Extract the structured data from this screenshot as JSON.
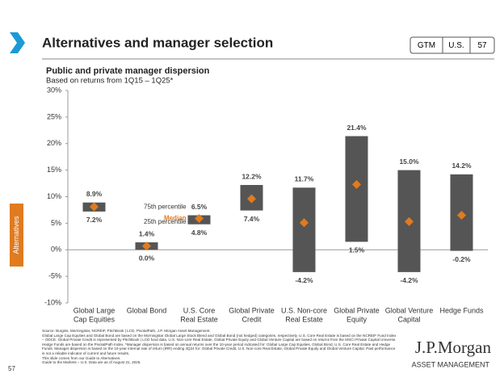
{
  "header": {
    "title": "Alternatives and manager selection",
    "tags": [
      "GTM",
      "U.S.",
      "57"
    ]
  },
  "side_tab": "Alternatives",
  "page_number": "57",
  "chart_data": {
    "type": "floating-bar",
    "title": "Public and private manager dispersion",
    "subtitle": "Based on returns from 1Q15 – 1Q25*",
    "categories": [
      [
        "Global Large",
        "Cap Equities"
      ],
      [
        "Global Bond"
      ],
      [
        "U.S. Core",
        "Real Estate"
      ],
      [
        "Global Private",
        "Credit"
      ],
      [
        "U.S. Non-core",
        "Real Estate"
      ],
      [
        "Global Private",
        "Equity"
      ],
      [
        "Global Venture",
        "Capital"
      ],
      [
        "Hedge Funds"
      ]
    ],
    "series": [
      {
        "name": "75th percentile",
        "color": "#555555",
        "values": [
          8.9,
          1.4,
          6.5,
          12.2,
          11.7,
          21.4,
          15.0,
          14.2
        ],
        "value_labels": [
          "8.9%",
          "1.4%",
          "6.5%",
          "12.2%",
          "11.7%",
          "21.4%",
          "15.0%",
          "14.2%"
        ]
      },
      {
        "name": "Median",
        "color": "#e07b1f",
        "values": [
          8.1,
          0.7,
          5.9,
          9.6,
          5.1,
          12.3,
          5.3,
          6.5
        ]
      },
      {
        "name": "25th percentile",
        "color": "#555555",
        "values": [
          7.2,
          0.0,
          4.8,
          7.4,
          -4.2,
          1.5,
          -4.2,
          -0.2
        ],
        "value_labels": [
          "7.2%",
          "0.0%",
          "4.8%",
          "7.4%",
          "-4.2%",
          "1.5%",
          "-4.2%",
          "-0.2%"
        ]
      }
    ],
    "legend_category": 2,
    "ylim": [
      -10,
      30
    ],
    "yticks": [
      {
        "value": -10,
        "label": "-10%"
      },
      {
        "value": -5,
        "label": "-5%"
      },
      {
        "value": 0,
        "label": "0%"
      },
      {
        "value": 5,
        "label": "5%"
      },
      {
        "value": 10,
        "label": "10%"
      },
      {
        "value": 15,
        "label": "15%"
      },
      {
        "value": 20,
        "label": "20%"
      },
      {
        "value": 25,
        "label": "25%"
      },
      {
        "value": 30,
        "label": "30%"
      }
    ]
  },
  "footnotes": [
    "Source: Burgiss, Morningstar, NCREIF, PitchBook | LCD, PivotalPath, J.P. Morgan Asset Management.",
    "Global Large Cap Equities and Global Bond are based on the Morningstar Global Large Stock Blend and Global Bond (not hedged) categories, respectively. U.S. Core Real Estate is based on the NCREIF Fund Index – ODCE. Global Private Credit is represented by PitchBook | LCD fund data. U.S. Non-core Real Estate, Global Private Equity and Global Venture Capital are based on returns from the MSCI Private Capital Universe. Hedge Funds are based on the PivotalPath Index. *Manager dispersion is based on annual returns over the 10-year period indicated for: Global Large Cap Equities, Global Bond, U.S. Core Real Estate and Hedge Funds. Manager dispersion is based on the 10-year internal rate of return (IRR) ending 4Q24 for: Global Private Credit, U.S. Non-core Real Estate, Global Private Equity and Global Venture Capital. Past performance is not a reliable indicator of current and future results.",
    "This slide comes from our Guide to Alternatives.",
    "Guide to the Markets – U.S. Data are as of August 31, 2025."
  ],
  "logo": {
    "name": "J.P.Morgan",
    "sub": "ASSET MANAGEMENT"
  }
}
